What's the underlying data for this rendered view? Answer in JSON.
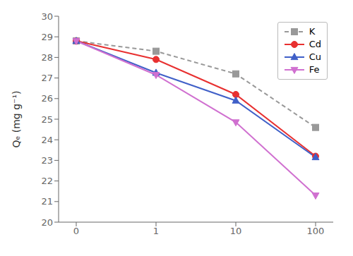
{
  "chart_data": {
    "type": "line",
    "categories": [
      "0",
      "1",
      "10",
      "100"
    ],
    "series": [
      {
        "name": "K",
        "color": "#999999",
        "marker": "square",
        "line_style": "dashed",
        "values": [
          28.8,
          28.3,
          27.2,
          24.6
        ]
      },
      {
        "name": "Cd",
        "color": "#e83030",
        "marker": "circle",
        "line_style": "solid",
        "values": [
          28.8,
          27.9,
          26.2,
          23.2
        ]
      },
      {
        "name": "Cu",
        "color": "#4060c8",
        "marker": "triangle-up",
        "line_style": "solid",
        "values": [
          28.8,
          27.25,
          25.9,
          23.15
        ]
      },
      {
        "name": "Fe",
        "color": "#d070d0",
        "marker": "triangle-down",
        "line_style": "solid",
        "values": [
          28.8,
          27.15,
          24.85,
          21.3
        ]
      }
    ],
    "ylabel": "Qₑ (mg g⁻¹)",
    "ylim": [
      20,
      30
    ],
    "yticks": [
      20,
      21,
      22,
      23,
      24,
      25,
      26,
      27,
      28,
      29,
      30
    ],
    "grid": false,
    "legend": "upper right"
  }
}
